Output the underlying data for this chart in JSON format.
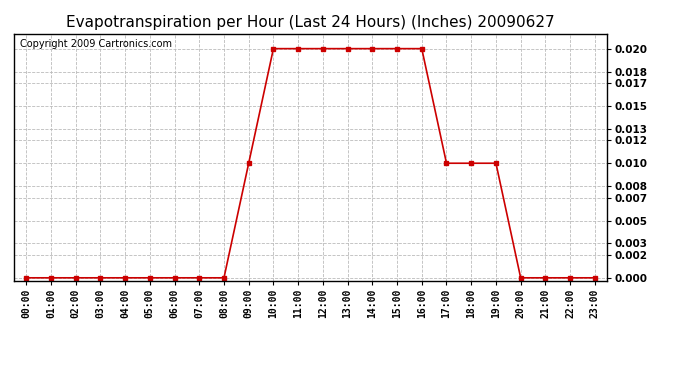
{
  "title": "Evapotranspiration per Hour (Last 24 Hours) (Inches) 20090627",
  "copyright": "Copyright 2009 Cartronics.com",
  "hours": [
    "00:00",
    "01:00",
    "02:00",
    "03:00",
    "04:00",
    "05:00",
    "06:00",
    "07:00",
    "08:00",
    "09:00",
    "10:00",
    "11:00",
    "12:00",
    "13:00",
    "14:00",
    "15:00",
    "16:00",
    "17:00",
    "18:00",
    "19:00",
    "20:00",
    "21:00",
    "22:00",
    "23:00"
  ],
  "values": [
    0.0,
    0.0,
    0.0,
    0.0,
    0.0,
    0.0,
    0.0,
    0.0,
    0.0,
    0.01,
    0.02,
    0.02,
    0.02,
    0.02,
    0.02,
    0.02,
    0.02,
    0.01,
    0.01,
    0.01,
    0.0,
    0.0,
    0.0,
    0.0
  ],
  "line_color": "#cc0000",
  "marker": "s",
  "marker_size": 3,
  "bg_color": "#ffffff",
  "grid_color": "#bbbbbb",
  "yticks": [
    0.0,
    0.002,
    0.003,
    0.005,
    0.007,
    0.008,
    0.01,
    0.012,
    0.013,
    0.015,
    0.017,
    0.018,
    0.02
  ],
  "ylim": [
    -0.0003,
    0.0213
  ],
  "title_fontsize": 11,
  "copyright_fontsize": 7
}
